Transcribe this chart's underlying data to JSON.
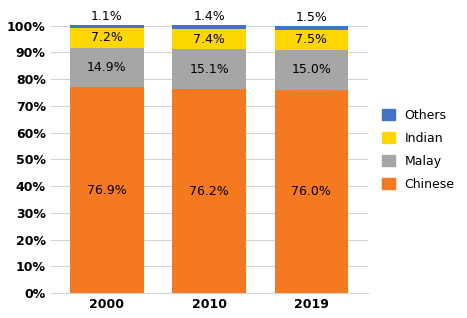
{
  "years": [
    "2000",
    "2010",
    "2019"
  ],
  "chinese": [
    76.9,
    76.2,
    76.0
  ],
  "malay": [
    14.9,
    15.1,
    15.0
  ],
  "indian": [
    7.2,
    7.4,
    7.5
  ],
  "others": [
    1.1,
    1.4,
    1.5
  ],
  "chinese_color": "#F47920",
  "malay_color": "#A6A6A6",
  "indian_color": "#FFD700",
  "others_color": "#4472C4",
  "chinese_label": "Chinese",
  "malay_label": "Malay",
  "indian_label": "Indian",
  "others_label": "Others",
  "ylim": [
    0,
    107
  ],
  "yticks": [
    0,
    10,
    20,
    30,
    40,
    50,
    60,
    70,
    80,
    90,
    100
  ],
  "ytick_labels": [
    "0%",
    "10%",
    "20%",
    "30%",
    "40%",
    "50%",
    "60%",
    "70%",
    "80%",
    "90%",
    "100%"
  ],
  "bar_width": 0.72,
  "label_fontsize": 9,
  "tick_fontsize": 9,
  "legend_fontsize": 9
}
